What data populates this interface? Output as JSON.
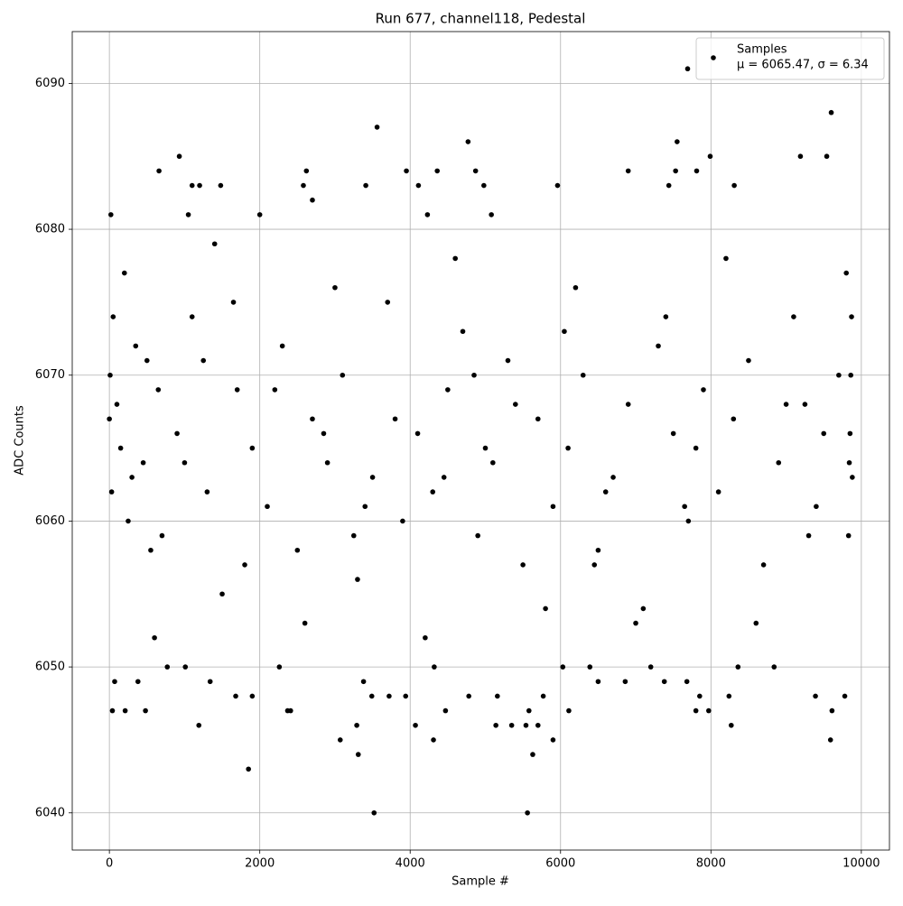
{
  "chart_data": {
    "type": "scatter",
    "title": "Run 677, channel118, Pedestal",
    "x_label": "Sample #",
    "y_label": "ADC Counts",
    "xlim": [
      -494,
      10374
    ],
    "ylim": [
      6037.45,
      6093.55
    ],
    "xticks": [
      0,
      2000,
      4000,
      6000,
      8000,
      10000
    ],
    "yticks": [
      6040,
      6050,
      6060,
      6070,
      6080,
      6090
    ],
    "grid": true,
    "legend": "upper right",
    "legend_note": "μ = 6065.47, σ = 6.34",
    "x": [
      1850,
      3520,
      5560,
      3310,
      5630,
      4310,
      3070,
      5900,
      9590,
      1190,
      3290,
      4070,
      5140,
      5350,
      5540,
      5700,
      8270,
      40,
      210,
      480,
      2370,
      2410,
      4470,
      5580,
      6110,
      7800,
      7970,
      9610,
      1680,
      1900,
      3490,
      3720,
      3940,
      4780,
      5160,
      5770,
      7850,
      8240,
      9390,
      9780,
      70,
      1340,
      380,
      3380,
      6500,
      6860,
      7380,
      7680,
      770,
      1010,
      2260,
      4320,
      6030,
      6390,
      7200,
      8840,
      8360,
      7690,
      9600,
      3560,
      4770,
      7550,
      930,
      9190,
      9540,
      7990,
      660,
      2620,
      3950,
      4360,
      4870,
      6900,
      7530,
      7810,
      1100,
      1200,
      1480,
      2580,
      3410,
      4110,
      4980,
      5960,
      7440,
      8310,
      20,
      1050,
      2000,
      2700,
      4230,
      5080,
      100,
      300,
      500,
      700,
      900,
      1100,
      1300,
      1500,
      1700,
      1900,
      2100,
      2300,
      2500,
      2700,
      2900,
      3100,
      3300,
      3500,
      3700,
      3900,
      4100,
      4300,
      4500,
      4700,
      4900,
      5100,
      5300,
      5500,
      5700,
      5900,
      6100,
      6300,
      6500,
      6700,
      6900,
      7100,
      7300,
      7500,
      7700,
      7900,
      8100,
      8300,
      8500,
      8700,
      8900,
      9100,
      9300,
      9500,
      9700,
      9880,
      200,
      600,
      1000,
      1400,
      1800,
      2200,
      2600,
      3000,
      3400,
      3800,
      4200,
      4600,
      5000,
      5400,
      5800,
      6200,
      6600,
      7000,
      7400,
      7800,
      8200,
      8600,
      9000,
      9400,
      9800,
      9870,
      9850,
      9830,
      9860,
      9840,
      0,
      10,
      30,
      50,
      150,
      250,
      350,
      450,
      550,
      650,
      1250,
      2850,
      4450,
      6050,
      7650,
      9250,
      1650,
      3250,
      4850,
      6450
    ],
    "series": [
      {
        "name": "Samples",
        "color": "#000000",
        "values": [
          6043,
          6040,
          6040,
          6044,
          6044,
          6045,
          6045,
          6045,
          6045,
          6046,
          6046,
          6046,
          6046,
          6046,
          6046,
          6046,
          6046,
          6047,
          6047,
          6047,
          6047,
          6047,
          6047,
          6047,
          6047,
          6047,
          6047,
          6047,
          6048,
          6048,
          6048,
          6048,
          6048,
          6048,
          6048,
          6048,
          6048,
          6048,
          6048,
          6048,
          6049,
          6049,
          6049,
          6049,
          6049,
          6049,
          6049,
          6049,
          6050,
          6050,
          6050,
          6050,
          6050,
          6050,
          6050,
          6050,
          6050,
          6091,
          6088,
          6087,
          6086,
          6086,
          6085,
          6085,
          6085,
          6085,
          6084,
          6084,
          6084,
          6084,
          6084,
          6084,
          6084,
          6084,
          6083,
          6083,
          6083,
          6083,
          6083,
          6083,
          6083,
          6083,
          6083,
          6083,
          6081,
          6081,
          6081,
          6082,
          6081,
          6081,
          6068,
          6063,
          6071,
          6059,
          6066,
          6074,
          6062,
          6055,
          6069,
          6065,
          6061,
          6072,
          6058,
          6067,
          6064,
          6070,
          6056,
          6063,
          6075,
          6060,
          6066,
          6062,
          6069,
          6073,
          6059,
          6064,
          6071,
          6057,
          6067,
          6061,
          6065,
          6070,
          6058,
          6063,
          6068,
          6054,
          6072,
          6066,
          6060,
          6069,
          6062,
          6067,
          6071,
          6057,
          6064,
          6074,
          6059,
          6066,
          6070,
          6063,
          6077,
          6052,
          6064,
          6079,
          6057,
          6069,
          6053,
          6076,
          6061,
          6067,
          6052,
          6078,
          6065,
          6068,
          6054,
          6076,
          6062,
          6053,
          6074,
          6065,
          6078,
          6053,
          6068,
          6061,
          6077,
          6074,
          6066,
          6059,
          6070,
          6064,
          6067,
          6070,
          6062,
          6074,
          6065,
          6060,
          6072,
          6064,
          6058,
          6069,
          6071,
          6066,
          6063,
          6073,
          6061,
          6068,
          6075,
          6059,
          6070,
          6057
        ]
      }
    ]
  }
}
